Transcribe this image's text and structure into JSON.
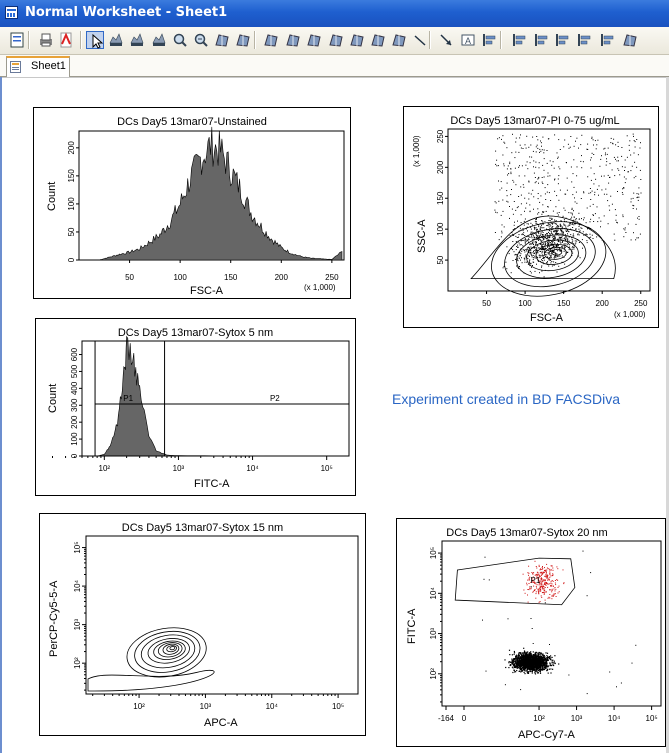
{
  "window": {
    "title": "Normal Worksheet - Sheet1"
  },
  "toolbar": {
    "icons": [
      "properties-icon",
      "print-icon",
      "pdf-icon",
      "pointer-icon",
      "histogram-tool-icon",
      "contour-tool-icon",
      "bar-chart-icon",
      "zoom-in-icon",
      "zoom-out-icon",
      "tile-icon",
      "text-icon",
      "rect-gate-icon",
      "polygon-gate-icon",
      "snap-gate-icon",
      "quad-gate-icon",
      "grid-gate-icon",
      "split-gate-icon",
      "interval-gate-icon",
      "line-icon",
      "arrow-icon",
      "label-icon",
      "align-left-icon",
      "align-right-icon",
      "align-top-icon",
      "align-bottom-icon",
      "space-horizontal-icon",
      "space-vertical-icon",
      "grid-icon"
    ]
  },
  "tabs": [
    {
      "label": "Sheet1",
      "active": true
    }
  ],
  "annotation": {
    "text": "Experiment created in BD FACSDiva"
  },
  "plots": [
    {
      "id": "p1",
      "title": "DCs Day5 13mar07-Unstained",
      "xlabel": "FSC-A",
      "ylabel": "Count",
      "unit": "(x 1,000)",
      "type": "histogram",
      "xticks": [
        "50",
        "100",
        "150",
        "200",
        "250"
      ],
      "yticks": [
        "0",
        "50",
        "100",
        "150",
        "200"
      ]
    },
    {
      "id": "p2",
      "title": "DCs Day5 13mar07-PI 0-75 ug/mL",
      "xlabel": "FSC-A",
      "ylabel": "SSC-A",
      "yunit": "(x 1,000)",
      "unit": "(x 1,000)",
      "type": "dot-contour",
      "xticks": [
        "50",
        "100",
        "150",
        "200",
        "250"
      ],
      "yticks": [
        "50",
        "100",
        "150",
        "200",
        "250"
      ]
    },
    {
      "id": "p3",
      "title": "DCs Day5 13mar07-Sytox 5 nm",
      "xlabel": "FITC-A",
      "ylabel": "Count",
      "type": "histogram",
      "xticks": [
        "10²",
        "10³",
        "10⁴",
        "10⁵"
      ],
      "yticks": [
        "0",
        "100",
        "200",
        "300",
        "400",
        "500",
        "600"
      ],
      "gates": [
        {
          "name": "P1"
        },
        {
          "name": "P2"
        }
      ]
    },
    {
      "id": "p4",
      "title": "DCs Day5 13mar07-Sytox 15 nm",
      "xlabel": "APC-A",
      "ylabel": "PerCP-Cy5-5-A",
      "type": "contour",
      "xticks": [
        "10²",
        "10³",
        "10⁴",
        "10⁵"
      ],
      "yticks": [
        "10²",
        "10³",
        "10⁴",
        "10⁵"
      ]
    },
    {
      "id": "p5",
      "title": "DCs Day5 13mar07-Sytox 20 nm",
      "xlabel": "APC-Cy7-A",
      "ylabel": "FITC-A",
      "type": "dot",
      "xticks": [
        "-164",
        "0",
        "10²",
        "10³",
        "10⁴",
        "10⁵"
      ],
      "yticks": [
        "10²",
        "10³",
        "10⁴",
        "10⁵"
      ],
      "gates": [
        {
          "name": "P1"
        }
      ]
    }
  ],
  "chart_data": [
    {
      "type": "histogram",
      "title": "DCs Day5 13mar07-Unstained",
      "xlabel": "FSC-A",
      "ylabel": "Count",
      "xlim": [
        0,
        262
      ],
      "ylim": [
        0,
        230
      ],
      "x": [
        20,
        30,
        40,
        50,
        60,
        70,
        80,
        90,
        100,
        110,
        120,
        130,
        140,
        150,
        160,
        170,
        180,
        190,
        200,
        210,
        220,
        230,
        240,
        250,
        260
      ],
      "values": [
        0,
        5,
        10,
        14,
        20,
        32,
        45,
        68,
        100,
        145,
        180,
        205,
        195,
        160,
        125,
        85,
        60,
        38,
        22,
        12,
        6,
        3,
        2,
        1,
        15
      ]
    },
    {
      "type": "histogram",
      "title": "DCs Day5 13mar07-Sytox 5 nm",
      "xlabel": "FITC-A",
      "ylabel": "Count",
      "xlim": [
        50,
        200000
      ],
      "ylim": [
        0,
        680
      ],
      "x": [
        60,
        80,
        100,
        120,
        150,
        180,
        200,
        250,
        300,
        400,
        500,
        700,
        1000,
        5000,
        20000
      ],
      "values": [
        0,
        0,
        10,
        60,
        200,
        450,
        640,
        560,
        380,
        120,
        30,
        5,
        2,
        1,
        0
      ]
    }
  ]
}
